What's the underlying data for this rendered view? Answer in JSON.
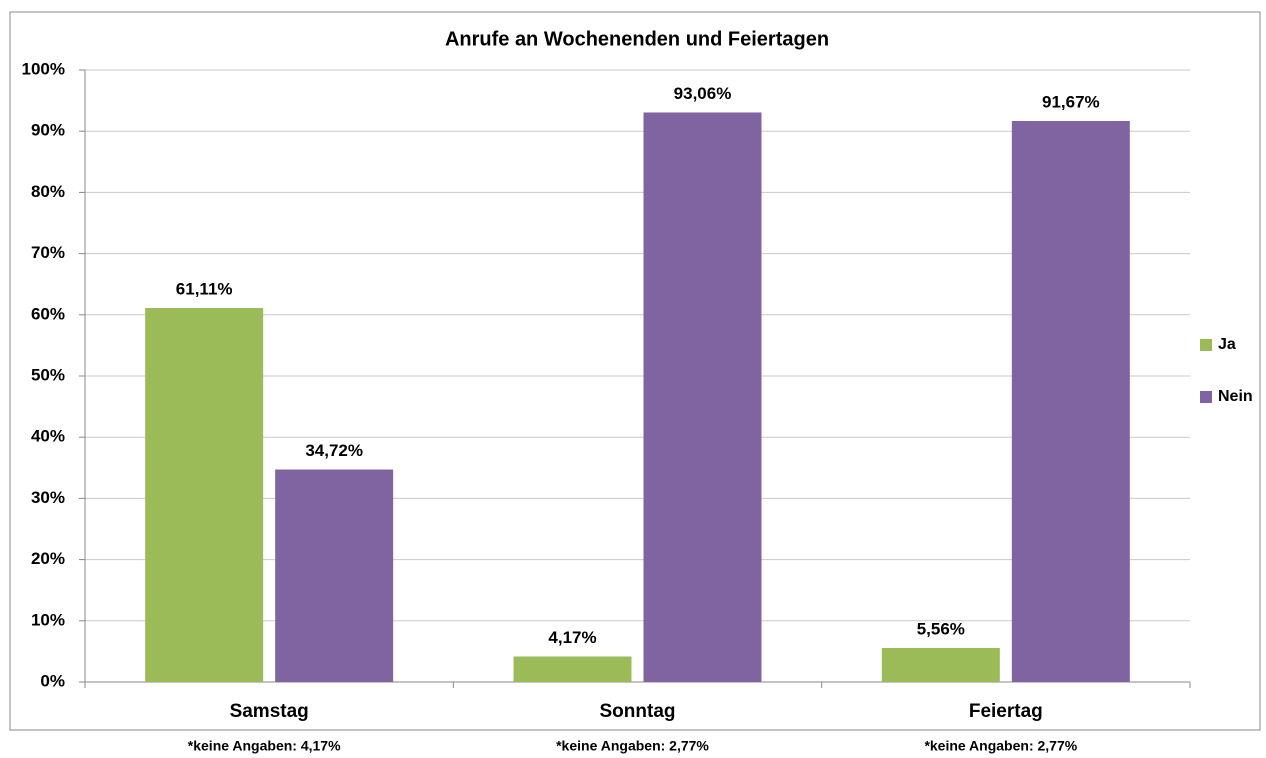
{
  "chart_data": {
    "type": "bar",
    "title": "Anrufe an Wochenenden und Feiertagen",
    "categories": [
      "Samstag",
      "Sonntag",
      "Feiertag"
    ],
    "series": [
      {
        "name": "Ja",
        "color": "#9bbb59",
        "values": [
          61.11,
          4.17,
          5.56
        ],
        "value_labels": [
          "61,11%",
          "4,17%",
          "5,56%"
        ]
      },
      {
        "name": "Nein",
        "color": "#8064a2",
        "values": [
          34.72,
          93.06,
          91.67
        ],
        "value_labels": [
          "34,72%",
          "93,06%",
          "91,67%"
        ]
      }
    ],
    "ylim": [
      0,
      100
    ],
    "yticks": [
      {
        "value": 0,
        "label": "0%"
      },
      {
        "value": 10,
        "label": "10%"
      },
      {
        "value": 20,
        "label": "20%"
      },
      {
        "value": 30,
        "label": "30%"
      },
      {
        "value": 40,
        "label": "40%"
      },
      {
        "value": 50,
        "label": "50%"
      },
      {
        "value": 60,
        "label": "60%"
      },
      {
        "value": 70,
        "label": "70%"
      },
      {
        "value": 80,
        "label": "80%"
      },
      {
        "value": 90,
        "label": "90%"
      },
      {
        "value": 100,
        "label": "100%"
      }
    ],
    "grid": true,
    "legend": "right",
    "annotations": [
      "*keine Angaben: 4,17%",
      "*keine Angaben: 2,77%",
      "*keine Angaben: 2,77%"
    ]
  }
}
